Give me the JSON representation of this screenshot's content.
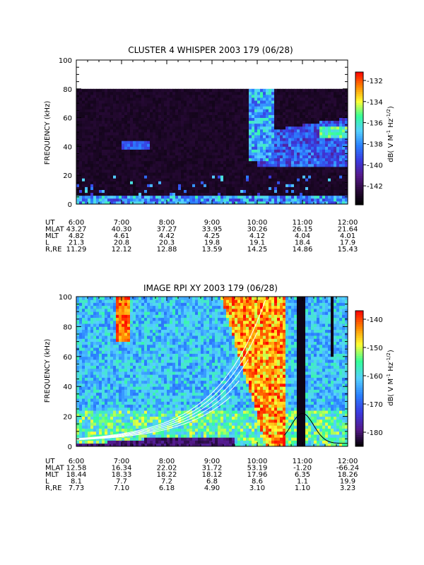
{
  "chart_data": [
    {
      "type": "heatmap",
      "title": "CLUSTER 4 WHISPER 2003 179 (06/28)",
      "ylabel": "FREQUENCY (kHz)",
      "ylim": [
        0,
        100
      ],
      "yticks": [
        "0",
        "20",
        "40",
        "60",
        "80",
        "100"
      ],
      "xlim": [
        "6:00",
        "12:00"
      ],
      "colorbar": {
        "label": "dB( V M",
        "sup1": "-1",
        "mid": " Hz",
        "sup2": "-1/2",
        "end": ")",
        "range": [
          -143.8,
          -131.2
        ],
        "ticks": [
          "-132",
          "-134",
          "-136",
          "-138",
          "-140",
          "-142"
        ]
      },
      "ephemeris": {
        "labels": [
          "UT",
          "MLAT",
          "MLT",
          "L",
          "R,RE"
        ],
        "columns": [
          [
            "6:00",
            "43.27",
            "4.82",
            "21.3",
            "11.29"
          ],
          [
            "7:00",
            "40.30",
            "4.61",
            "20.8",
            "12.12"
          ],
          [
            "8:00",
            "37.27",
            "4.42",
            "20.3",
            "12.88"
          ],
          [
            "9:00",
            "33.95",
            "4.25",
            "19.8",
            "13.59"
          ],
          [
            "10:00",
            "30.26",
            "4.12",
            "19.1",
            "14.25"
          ],
          [
            "11:00",
            "26.15",
            "4.04",
            "18.4",
            "14.86"
          ],
          [
            "12:00",
            "21.64",
            "4.01",
            "17.9",
            "15.43"
          ]
        ]
      },
      "colors": [
        "#000000",
        "#2a0a3a",
        "#551a8b",
        "#3a3ae0",
        "#2a80ff",
        "#55d0ff",
        "#33ff99",
        "#ffff33",
        "#ff8800",
        "#ff0000"
      ]
    },
    {
      "type": "heatmap",
      "title": "IMAGE RPI XY 2003 179 (06/28)",
      "ylabel": "FREQUENCY (kHz)",
      "ylim": [
        0,
        100
      ],
      "yticks": [
        "0",
        "20",
        "40",
        "60",
        "80",
        "100"
      ],
      "xlim": [
        "6:00",
        "12:00"
      ],
      "colorbar": {
        "label": "dB( V M",
        "sup1": "-1",
        "mid": " Hz",
        "sup2": "-1/2",
        "end": ")",
        "range": [
          -185,
          -137
        ],
        "ticks": [
          "-140",
          "-150",
          "-160",
          "-170",
          "-180"
        ]
      },
      "ephemeris": {
        "labels": [
          "UT",
          "MLAT",
          "MLT",
          "L",
          "R,RE"
        ],
        "columns": [
          [
            "6:00",
            "12.58",
            "18.44",
            "8.1",
            "7.73"
          ],
          [
            "7:00",
            "16.34",
            "18.33",
            "7.7",
            "7.10"
          ],
          [
            "8:00",
            "22.02",
            "18.22",
            "7.2",
            "6.18"
          ],
          [
            "9:00",
            "31.72",
            "18.12",
            "6.8",
            "4.90"
          ],
          [
            "10:00",
            "53.19",
            "17.96",
            "8.6",
            "3.10"
          ],
          [
            "11:00",
            "-1.20",
            "6.35",
            "1.1",
            "1.10"
          ],
          [
            "12:00",
            "-66.24",
            "18.26",
            "19.9",
            "3.23"
          ]
        ]
      },
      "colors": [
        "#000000",
        "#551a8b",
        "#3a3ae0",
        "#2a80ff",
        "#55d0ff",
        "#33ff99",
        "#ffff33",
        "#ff8800",
        "#ff0000"
      ]
    }
  ]
}
